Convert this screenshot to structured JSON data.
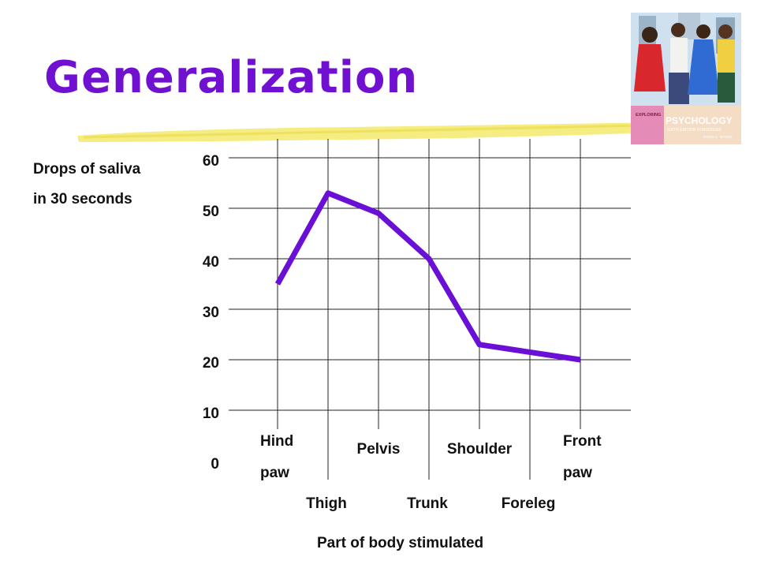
{
  "slide": {
    "title": "Generalization",
    "title_color": "#7010d0",
    "underline_color": "#f4ec7a"
  },
  "book_cover": {
    "series_label": "EXPLORING",
    "title": "PSYCHOLOGY",
    "edition": "SIXTH EDITION IN MODULES",
    "author": "DAVID G. MYERS"
  },
  "chart_data": {
    "type": "line",
    "ylabel_lines": [
      "Drops of saliva",
      "in 30 seconds"
    ],
    "xlabel": "Part of body stimulated",
    "categories": [
      "Hind paw",
      "Thigh",
      "Pelvis",
      "Trunk",
      "Shoulder",
      "Foreleg",
      "Front paw"
    ],
    "category_labels": [
      {
        "lines": [
          "Hind",
          "paw"
        ],
        "row": "upper"
      },
      {
        "lines": [
          "Thigh"
        ],
        "row": "lower"
      },
      {
        "lines": [
          "Pelvis"
        ],
        "row": "upper"
      },
      {
        "lines": [
          "Trunk"
        ],
        "row": "lower"
      },
      {
        "lines": [
          "Shoulder"
        ],
        "row": "upper"
      },
      {
        "lines": [
          "Foreleg"
        ],
        "row": "lower"
      },
      {
        "lines": [
          "Front",
          "paw"
        ],
        "row": "upper"
      }
    ],
    "values": [
      35,
      53,
      49,
      40,
      23,
      21.5,
      20
    ],
    "ylim": [
      0,
      60
    ],
    "yticks": [
      0,
      10,
      20,
      30,
      40,
      50,
      60
    ],
    "grid": true,
    "line_color": "#6a0fd6"
  }
}
